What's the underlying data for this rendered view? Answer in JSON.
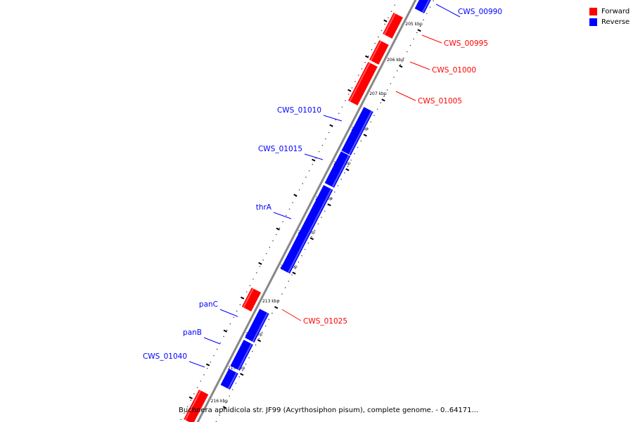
{
  "legend": {
    "forward_label": "Forward",
    "reverse_label": "Reverse",
    "forward_color": "#ff0000",
    "reverse_color": "#0000ff"
  },
  "caption": "Buchnera aphidicola str. JF99 (Acyrthosiphon pisum), complete genome. - 0..64171...",
  "axis": {
    "tick_labels": [
      "205 kbp",
      "206 kbp",
      "207 kbp",
      "208 kbp",
      "209 kbp",
      "210 kbp",
      "211 kbp",
      "212 kbp",
      "213 kbp",
      "214 kbp",
      "215 kbp",
      "216 kbp"
    ]
  },
  "genes": [
    {
      "label": "CWS_00990",
      "strand": "reverse"
    },
    {
      "label": "CWS_00995",
      "strand": "forward"
    },
    {
      "label": "CWS_01000",
      "strand": "forward"
    },
    {
      "label": "CWS_01005",
      "strand": "forward"
    },
    {
      "label": "CWS_01010",
      "strand": "reverse"
    },
    {
      "label": "CWS_01015",
      "strand": "reverse"
    },
    {
      "label": "thrA",
      "strand": "reverse"
    },
    {
      "label": "CWS_01025",
      "strand": "forward"
    },
    {
      "label": "panC",
      "strand": "reverse"
    },
    {
      "label": "panB",
      "strand": "reverse"
    },
    {
      "label": "CWS_01040",
      "strand": "reverse"
    },
    {
      "label": "",
      "strand": "forward"
    }
  ]
}
